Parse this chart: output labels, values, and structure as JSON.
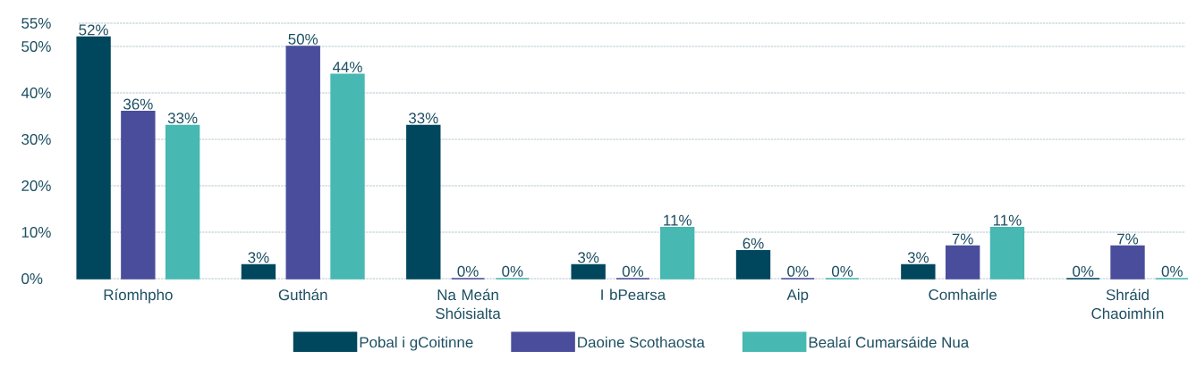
{
  "chart_data": {
    "type": "bar",
    "categories": [
      "Ríomhpho",
      "Guthán",
      "Na Meán Shóisialta",
      "I bPearsa",
      "Aip",
      "Comhairle",
      "Shráid Chaoimhín"
    ],
    "series": [
      {
        "name": "Pobal i gCoitinne",
        "color": "#00475e",
        "values": [
          52,
          3,
          33,
          3,
          6,
          3,
          0
        ],
        "value_labels": [
          "52%",
          "3%",
          "33%",
          "3%",
          "6%",
          "3%",
          "0%"
        ]
      },
      {
        "name": "Daoine Scothaosta",
        "color": "#4a4d9c",
        "values": [
          36,
          50,
          0,
          0,
          0,
          7,
          7
        ],
        "value_labels": [
          "36%",
          "50%",
          "0%",
          "0%",
          "0%",
          "7%",
          "7%"
        ]
      },
      {
        "name": "Bealaí Cumarsáide Nua",
        "color": "#47b8b2",
        "values": [
          33,
          44,
          0,
          11,
          0,
          11,
          0
        ],
        "value_labels": [
          "33%",
          "44%",
          "0%",
          "11%",
          "0%",
          "11%",
          "0%"
        ]
      }
    ],
    "ylim": [
      0,
      55
    ],
    "yticks": [
      {
        "value": 0,
        "label": "0%"
      },
      {
        "value": 10,
        "label": "10%"
      },
      {
        "value": 20,
        "label": "20%"
      },
      {
        "value": 30,
        "label": "30%"
      },
      {
        "value": 40,
        "label": "40%"
      },
      {
        "value": 50,
        "label": "50%"
      },
      {
        "value": 55,
        "label": "55%"
      }
    ],
    "grid": "y",
    "legend": "bottom"
  }
}
